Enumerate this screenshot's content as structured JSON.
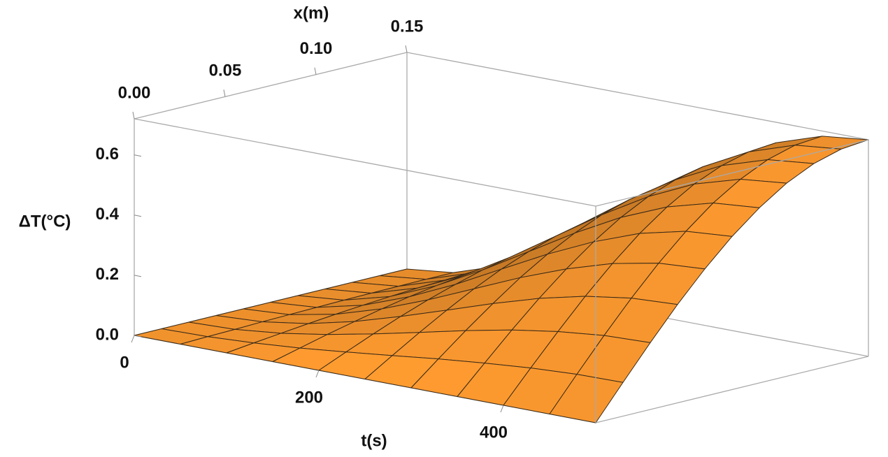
{
  "chart_data": {
    "type": "surface3d",
    "x_label": "t(s)",
    "y_label": "x(m)",
    "z_label": "ΔT(°C)",
    "x": [
      0,
      50,
      100,
      150,
      200,
      250,
      300,
      350,
      400,
      450,
      500
    ],
    "y": [
      0,
      0.015,
      0.03,
      0.045,
      0.06,
      0.075,
      0.09,
      0.105,
      0.12,
      0.135,
      0.15
    ],
    "z": [
      [
        0,
        0,
        0,
        0,
        0,
        0,
        0,
        0,
        0,
        0,
        0
      ],
      [
        0,
        0.003,
        0.005,
        0.008,
        0.01,
        0.012,
        0.014,
        0.015,
        0.016,
        0.017,
        0.017
      ],
      [
        0,
        0.011,
        0.021,
        0.031,
        0.04,
        0.048,
        0.055,
        0.061,
        0.065,
        0.067,
        0.068
      ],
      [
        0,
        0.023,
        0.046,
        0.067,
        0.087,
        0.105,
        0.12,
        0.132,
        0.141,
        0.146,
        0.148
      ],
      [
        0,
        0.039,
        0.077,
        0.113,
        0.146,
        0.175,
        0.201,
        0.221,
        0.236,
        0.245,
        0.248
      ],
      [
        0,
        0.056,
        0.111,
        0.163,
        0.212,
        0.255,
        0.291,
        0.321,
        0.342,
        0.356,
        0.36
      ],
      [
        0,
        0.074,
        0.146,
        0.214,
        0.278,
        0.334,
        0.382,
        0.421,
        0.449,
        0.466,
        0.472
      ],
      [
        0,
        0.089,
        0.177,
        0.26,
        0.336,
        0.404,
        0.463,
        0.51,
        0.544,
        0.565,
        0.572
      ],
      [
        0,
        0.102,
        0.201,
        0.296,
        0.383,
        0.461,
        0.527,
        0.581,
        0.62,
        0.644,
        0.652
      ],
      [
        0,
        0.11,
        0.217,
        0.319,
        0.413,
        0.497,
        0.569,
        0.626,
        0.669,
        0.695,
        0.703
      ],
      [
        0,
        0.112,
        0.222,
        0.327,
        0.423,
        0.509,
        0.582,
        0.642,
        0.685,
        0.711,
        0.72
      ]
    ],
    "xlim": [
      0,
      500
    ],
    "ylim": [
      0,
      0.15
    ],
    "zlim": [
      0,
      0.72
    ],
    "xticks": [
      0,
      200,
      400
    ],
    "yticks": [
      {
        "value": 0,
        "label": "0.00"
      },
      0.05,
      {
        "value": 0.1,
        "label": "0.10"
      },
      0.15
    ],
    "zticks": [
      {
        "value": 0,
        "label": "0.0"
      },
      0.2,
      0.4,
      0.6
    ],
    "color": "#f5952e",
    "box": true
  }
}
